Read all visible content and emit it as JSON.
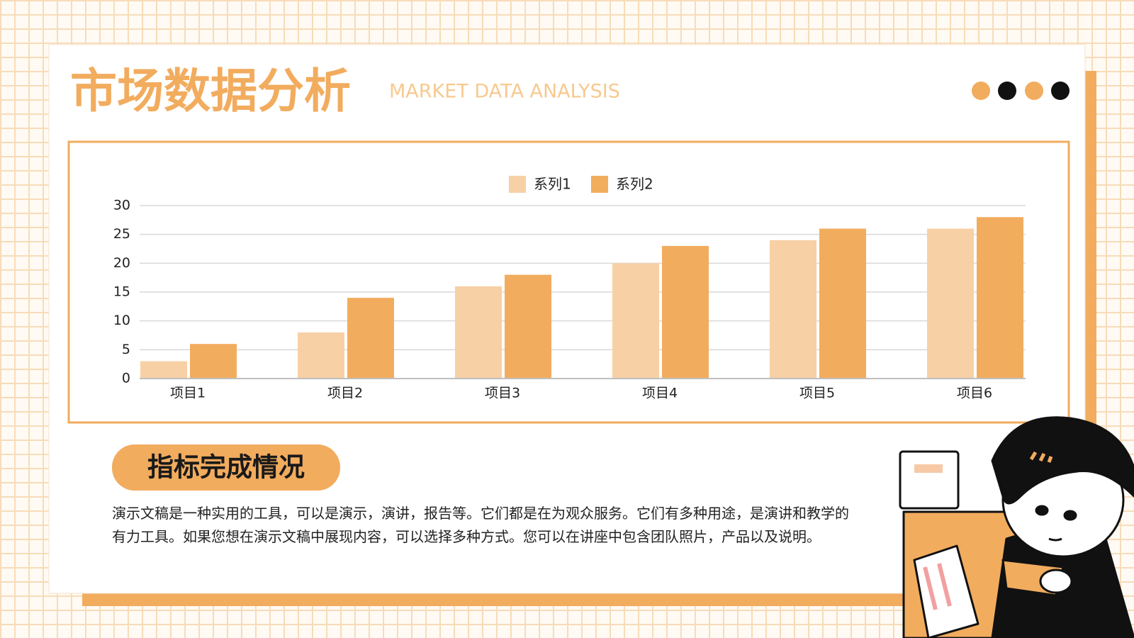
{
  "header": {
    "title": "市场数据分析",
    "subtitle": "MARKET DATA ANALYSIS"
  },
  "chart_data": {
    "type": "bar",
    "categories": [
      "项目1",
      "项目2",
      "项目3",
      "项目4",
      "项目5",
      "项目6"
    ],
    "series": [
      {
        "name": "系列1",
        "color": "#f7d0a5",
        "values": [
          3,
          8,
          16,
          20,
          24,
          26
        ]
      },
      {
        "name": "系列2",
        "color": "#f2ac5e",
        "values": [
          6,
          14,
          18,
          23,
          26,
          28
        ]
      }
    ],
    "ylim": [
      0,
      30
    ],
    "yticks": [
      0,
      5,
      10,
      15,
      20,
      25,
      30
    ],
    "grid": true,
    "legend": "top"
  },
  "section": {
    "heading": "指标完成情况",
    "body": "演示文稿是一种实用的工具，可以是演示，演讲，报告等。它们都是在为观众服务。它们有多种用途，是演讲和教学的有力工具。如果您想在演示文稿中展现内容，可以选择多种方式。您可以在讲座中包含团队照片，产品以及说明。"
  }
}
